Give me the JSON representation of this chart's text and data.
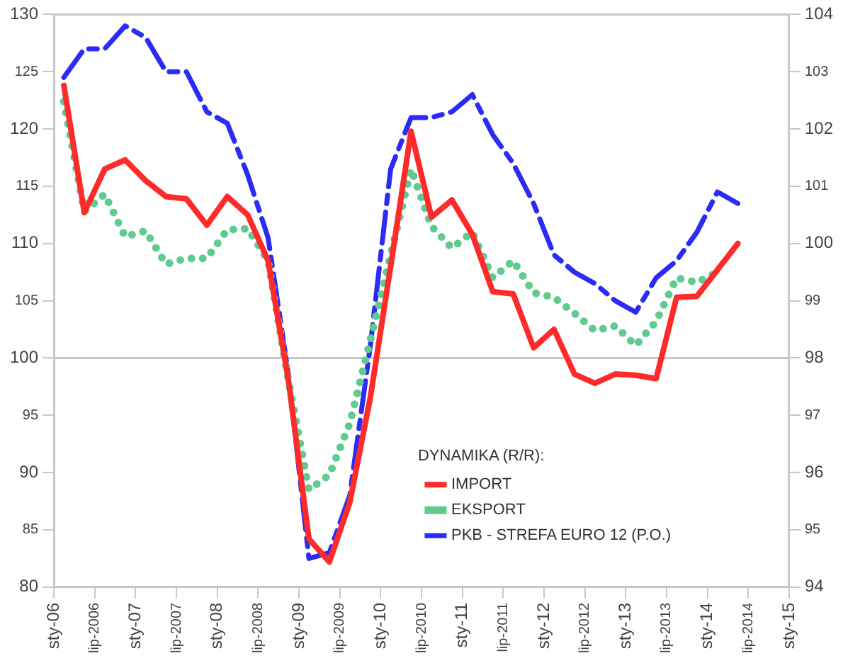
{
  "chart_data": {
    "type": "line",
    "x": [
      "2006-02-15",
      "2006-05-15",
      "2006-08-15",
      "2006-11-15",
      "2007-02-15",
      "2007-05-15",
      "2007-08-15",
      "2007-11-15",
      "2008-02-15",
      "2008-05-15",
      "2008-08-15",
      "2008-11-15",
      "2009-02-15",
      "2009-05-15",
      "2009-08-15",
      "2009-11-15",
      "2010-02-15",
      "2010-05-15",
      "2010-08-15",
      "2010-11-15",
      "2011-02-15",
      "2011-05-15",
      "2011-08-15",
      "2011-11-15",
      "2012-02-15",
      "2012-05-15",
      "2012-08-15",
      "2012-11-15",
      "2013-02-15",
      "2013-05-15",
      "2013-08-15",
      "2013-11-15",
      "2014-02-15",
      "2014-05-15"
    ],
    "series": [
      {
        "name": "IMPORT",
        "color": "#ff2a2a",
        "line_style": "solid",
        "values": [
          123.8,
          112.7,
          116.5,
          117.3,
          115.5,
          114.1,
          113.9,
          111.6,
          114.1,
          112.5,
          108.5,
          98,
          84.2,
          82.2,
          87.4,
          96.5,
          108,
          119.8,
          112.3,
          113.8,
          110.8,
          105.8,
          105.6,
          100.9,
          102.5,
          98.6,
          97.8,
          98.6,
          98.5,
          98.2,
          105.3,
          105.4,
          107.7,
          110
        ]
      },
      {
        "name": "EKSPORT",
        "color": "#5fcb8f",
        "line_style": "dotted",
        "values": [
          122.4,
          112.8,
          114.3,
          110.6,
          111.1,
          108.2,
          108.7,
          108.7,
          111.2,
          111.3,
          108.5,
          98,
          88.5,
          89.8,
          94.3,
          101.5,
          109,
          116.5,
          111.5,
          109.6,
          111,
          107,
          108.5,
          105.7,
          105.3,
          103.9,
          102.4,
          102.8,
          101.1,
          103.2,
          107,
          106.6,
          107.5,
          null
        ]
      },
      {
        "name": "PKB - STREFA EURO 12 (P.O.)",
        "color": "#2b2bf5",
        "line_style": "dashed",
        "axis": "y2",
        "values": [
          102.9,
          103.4,
          103.4,
          103.8,
          103.6,
          103.0,
          103.0,
          102.3,
          102.1,
          101.2,
          100.1,
          97.7,
          94.5,
          94.6,
          95.6,
          98.2,
          101.3,
          102.2,
          102.2,
          102.3,
          102.6,
          101.9,
          101.4,
          100.7,
          99.8,
          99.5,
          99.3,
          99.0,
          98.8,
          99.4,
          99.7,
          100.2,
          100.9,
          100.7
        ]
      }
    ],
    "xlim": [
      "2006-01",
      "2015-01"
    ],
    "xticks": [
      {
        "value": "2006-01",
        "label": "sty-06"
      },
      {
        "value": "2006-07",
        "label": "lip-2006"
      },
      {
        "value": "2007-01",
        "label": "sty-07"
      },
      {
        "value": "2007-07",
        "label": "lip-2007"
      },
      {
        "value": "2008-01",
        "label": "sty-08"
      },
      {
        "value": "2008-07",
        "label": "lip-2008"
      },
      {
        "value": "2009-01",
        "label": "sty-09"
      },
      {
        "value": "2009-07",
        "label": "lip-2009"
      },
      {
        "value": "2010-01",
        "label": "sty-10"
      },
      {
        "value": "2010-07",
        "label": "lip-2010"
      },
      {
        "value": "2011-01",
        "label": "sty-11"
      },
      {
        "value": "2011-07",
        "label": "lip-2011"
      },
      {
        "value": "2012-01",
        "label": "sty-12"
      },
      {
        "value": "2012-07",
        "label": "lip-2012"
      },
      {
        "value": "2013-01",
        "label": "sty-13"
      },
      {
        "value": "2013-07",
        "label": "lip-2013"
      },
      {
        "value": "2014-01",
        "label": "sty-14"
      },
      {
        "value": "2014-07",
        "label": "lip-2014"
      },
      {
        "value": "2015-01",
        "label": "sty-15"
      }
    ],
    "ylim": [
      80,
      130
    ],
    "yticks": [
      80,
      85,
      90,
      95,
      100,
      105,
      110,
      115,
      120,
      125,
      130
    ],
    "y2lim": [
      94,
      104
    ],
    "y2ticks": [
      94,
      95,
      96,
      97,
      98,
      99,
      100,
      101,
      102,
      103,
      104
    ],
    "ref_lines": [
      {
        "axis": "y",
        "value": 100,
        "color": "#c8c8c8"
      }
    ],
    "grid": false,
    "marker": "none",
    "legend": "bottom right",
    "legend_title": "DYNAMIKA (R/R):"
  }
}
